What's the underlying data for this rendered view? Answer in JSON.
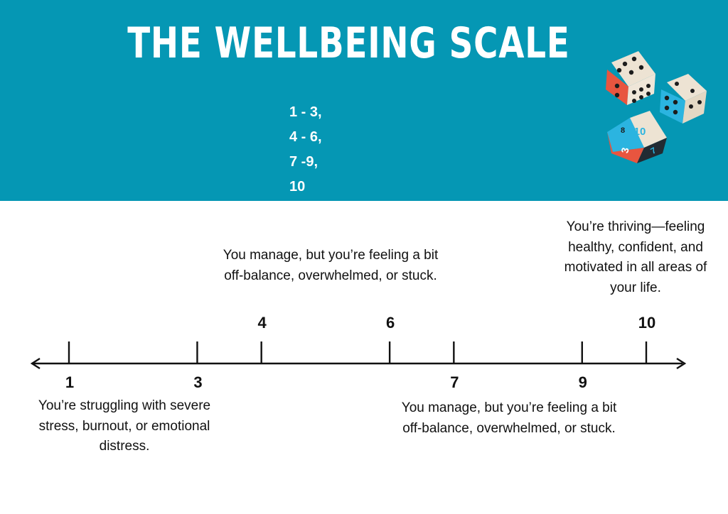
{
  "title": "THE WELLBEING SCALE",
  "ranges": [
    "1 - 3,",
    "4 - 6,",
    "7 -9,",
    "10"
  ],
  "scale": {
    "min": 1,
    "max": 10,
    "ticks": [
      {
        "value": 1,
        "label": "1",
        "label_side": "below"
      },
      {
        "value": 3,
        "label": "3",
        "label_side": "below"
      },
      {
        "value": 4,
        "label": "4",
        "label_side": "above"
      },
      {
        "value": 6,
        "label": "6",
        "label_side": "above"
      },
      {
        "value": 7,
        "label": "7",
        "label_side": "below"
      },
      {
        "value": 9,
        "label": "9",
        "label_side": "below"
      },
      {
        "value": 10,
        "label": "10",
        "label_side": "above"
      }
    ]
  },
  "descriptions": {
    "low": "You’re struggling with severe stress, burnout, or emotional distress.",
    "mid_upper": "You manage, but you’re feeling a bit off-balance, overwhelmed, or stuck.",
    "mid_lower": "You manage, but you’re feeling a bit off-balance, overwhelmed, or stuck.",
    "high": "You’re thriving—feeling healthy, confident, and motivated in all areas of your life."
  },
  "dice": {
    "d10_label": "10",
    "d10_face_a": "8",
    "d10_face_b": "3",
    "d10_face_c": "7"
  },
  "colors": {
    "banner": "#0597b4",
    "white": "#ffffff",
    "ink": "#111111",
    "die_red": "#e8553f",
    "die_blue": "#2bb4e0",
    "die_cream": "#ede3d3"
  }
}
